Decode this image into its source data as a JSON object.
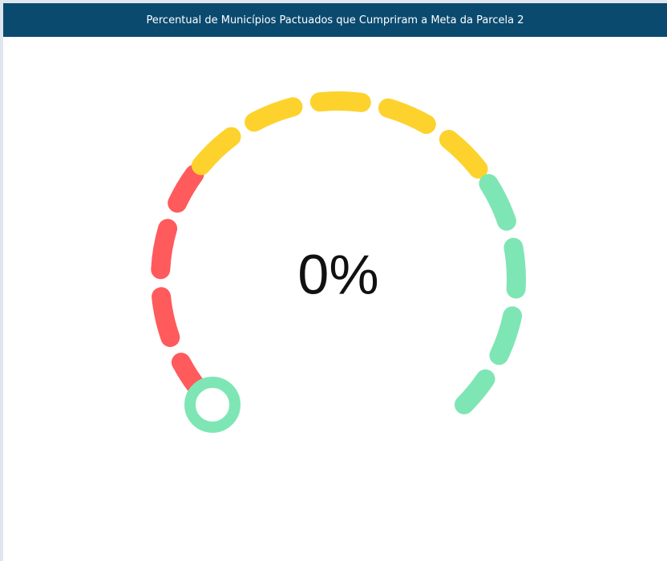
{
  "chart_data": {
    "type": "gauge",
    "title": "Percentual de Municípios Pactuados que Cumpriram a Meta da Parcela 2",
    "values": [
      0
    ],
    "value_labels": [
      "0%"
    ],
    "ylim": [
      0,
      100
    ],
    "bands": [
      {
        "from": 0,
        "to": 30,
        "color": "#ff5a5c"
      },
      {
        "from": 30,
        "to": 70,
        "color": "#fdd22c"
      },
      {
        "from": 70,
        "to": 100,
        "color": "#7ee6b4"
      }
    ],
    "marker_color": "#7ee6b4"
  }
}
